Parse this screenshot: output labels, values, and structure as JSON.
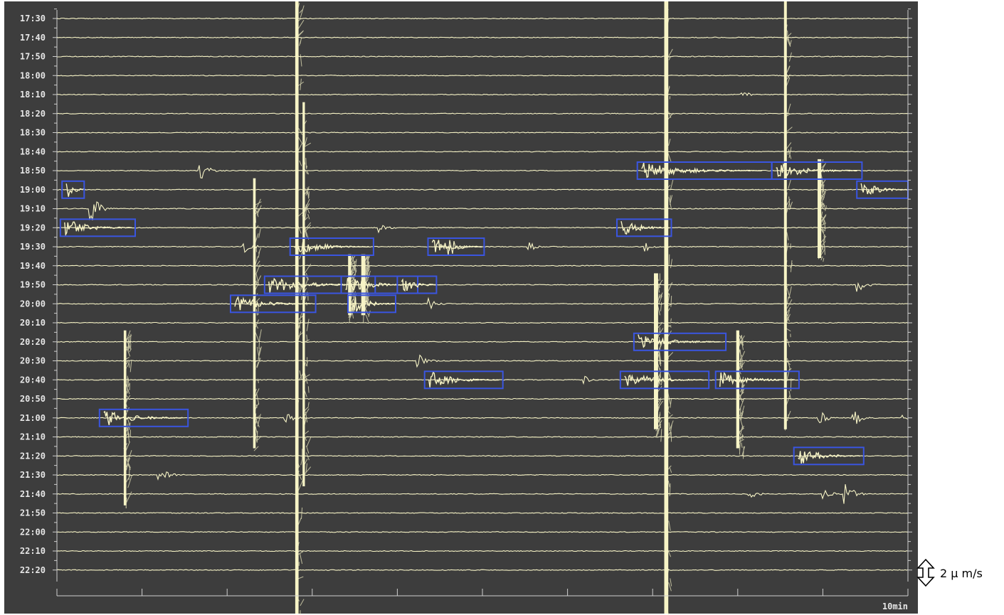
{
  "chart_data": {
    "type": "line",
    "title": "",
    "xlabel": "",
    "ylabel": "",
    "x_unit": "min",
    "xlim": [
      0,
      50
    ],
    "x_tick_interval_min": 5,
    "duration_label": "10min",
    "scale_bar": {
      "amplitude": 2,
      "label": "2 μ m/s"
    },
    "trace_labels": [
      "17:30",
      "17:40",
      "17:50",
      "18:00",
      "18:10",
      "18:20",
      "18:30",
      "18:40",
      "18:50",
      "19:00",
      "19:10",
      "19:20",
      "19:30",
      "19:40",
      "19:50",
      "20:00",
      "20:10",
      "20:20",
      "20:30",
      "20:40",
      "20:50",
      "21:00",
      "21:10",
      "21:20",
      "21:30",
      "21:40",
      "21:50",
      "22:00",
      "22:10",
      "22:20"
    ],
    "colors": {
      "background": "#3d3d3d",
      "trace": "#f7f4c6",
      "event_box": "#3a55e0",
      "axis": "#cfcfcf"
    },
    "events": [
      {
        "trace": "19:00",
        "t": 0.3,
        "dur": 1.3
      },
      {
        "trace": "19:20",
        "t": 0.2,
        "dur": 4.4
      },
      {
        "trace": "19:30",
        "t": 13.7,
        "dur": 4.9
      },
      {
        "trace": "19:30",
        "t": 21.8,
        "dur": 3.3
      },
      {
        "trace": "19:50",
        "t": 12.2,
        "dur": 6.5
      },
      {
        "trace": "19:50",
        "t": 16.7,
        "dur": 4.5
      },
      {
        "trace": "19:50",
        "t": 20.0,
        "dur": 2.3
      },
      {
        "trace": "20:00",
        "t": 10.2,
        "dur": 5.0
      },
      {
        "trace": "20:00",
        "t": 17.1,
        "dur": 2.8
      },
      {
        "trace": "21:00",
        "t": 2.5,
        "dur": 5.2
      },
      {
        "trace": "20:40",
        "t": 21.6,
        "dur": 4.6
      },
      {
        "trace": "18:50",
        "t": 34.1,
        "dur": 7.9
      },
      {
        "trace": "18:50",
        "t": 42.0,
        "dur": 5.3
      },
      {
        "trace": "19:00",
        "t": 47.0,
        "dur": 3.0
      },
      {
        "trace": "19:20",
        "t": 32.9,
        "dur": 3.2
      },
      {
        "trace": "20:20",
        "t": 33.9,
        "dur": 5.4
      },
      {
        "trace": "20:40",
        "t": 33.1,
        "dur": 5.2
      },
      {
        "trace": "20:40",
        "t": 38.7,
        "dur": 4.9
      },
      {
        "trace": "21:20",
        "t": 43.3,
        "dur": 4.1
      }
    ],
    "large_spikes": [
      {
        "t": 14.1,
        "from": "17:30",
        "to": "22:20"
      },
      {
        "t": 35.8,
        "from": "17:30",
        "to": "22:20"
      },
      {
        "t": 42.8,
        "from": "17:30",
        "to": "21:00"
      },
      {
        "t": 44.8,
        "from": "18:50",
        "to": "19:30"
      },
      {
        "t": 11.6,
        "from": "19:00",
        "to": "21:10"
      },
      {
        "t": 14.5,
        "from": "18:20",
        "to": "21:30"
      },
      {
        "t": 4.0,
        "from": "20:20",
        "to": "21:40"
      },
      {
        "t": 35.2,
        "from": "19:50",
        "to": "21:00"
      },
      {
        "t": 40.0,
        "from": "20:20",
        "to": "21:10"
      },
      {
        "t": 18.0,
        "from": "19:40",
        "to": "20:00"
      },
      {
        "t": 17.2,
        "from": "19:40",
        "to": "20:00"
      }
    ],
    "small_events": [
      {
        "trace": "18:50",
        "t": 8.4,
        "amp": 0.6
      },
      {
        "trace": "19:10",
        "t": 2.0,
        "amp": 0.9
      },
      {
        "trace": "19:20",
        "t": 18.9,
        "amp": 0.3
      },
      {
        "trace": "19:30",
        "t": 10.9,
        "amp": 0.5
      },
      {
        "trace": "19:30",
        "t": 23.0,
        "amp": 0.8
      },
      {
        "trace": "19:30",
        "t": 27.7,
        "amp": 0.3
      },
      {
        "trace": "19:30",
        "t": 34.6,
        "amp": 0.3
      },
      {
        "trace": "19:50",
        "t": 47.0,
        "amp": 0.5
      },
      {
        "trace": "20:00",
        "t": 21.9,
        "amp": 0.4
      },
      {
        "trace": "20:30",
        "t": 21.2,
        "amp": 0.4
      },
      {
        "trace": "20:40",
        "t": 31.0,
        "amp": 0.3
      },
      {
        "trace": "21:00",
        "t": 13.4,
        "amp": 0.4
      },
      {
        "trace": "21:00",
        "t": 44.8,
        "amp": 0.5
      },
      {
        "trace": "21:00",
        "t": 46.8,
        "amp": 0.5
      },
      {
        "trace": "21:00",
        "t": 49.7,
        "amp": 0.2
      },
      {
        "trace": "21:30",
        "t": 6.0,
        "amp": 0.5
      },
      {
        "trace": "21:40",
        "t": 40.7,
        "amp": 0.3
      },
      {
        "trace": "21:40",
        "t": 46.3,
        "amp": 0.7
      },
      {
        "trace": "21:40",
        "t": 45.0,
        "amp": 0.3
      },
      {
        "trace": "18:10",
        "t": 40.3,
        "amp": 0.2
      }
    ]
  }
}
